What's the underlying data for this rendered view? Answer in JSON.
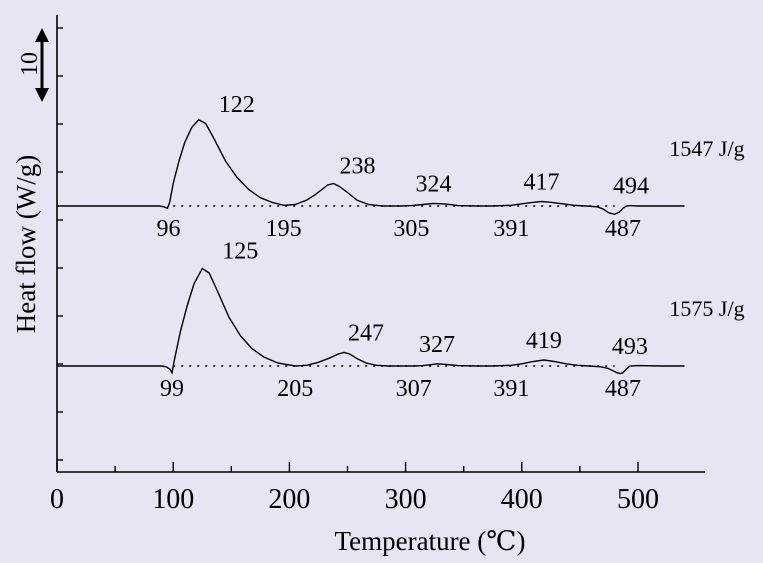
{
  "chart_data": {
    "type": "line",
    "xlabel": "Temperature (℃)",
    "ylabel": "Heat flow (W/g)",
    "scale_bar_label": "10",
    "xlim": [
      0,
      550
    ],
    "x_ticks": [
      "0",
      "100",
      "200",
      "300",
      "400",
      "500"
    ],
    "grid": false,
    "series": [
      {
        "energy_label": "1547 J/g",
        "x": [
          0,
          88,
          92,
          95,
          97,
          100,
          105,
          110,
          116,
          122,
          128,
          135,
          145,
          155,
          165,
          175,
          185,
          195,
          205,
          215,
          222,
          228,
          233,
          238,
          243,
          250,
          258,
          268,
          280,
          295,
          305,
          315,
          324,
          335,
          345,
          360,
          375,
          391,
          400,
          410,
          417,
          425,
          435,
          445,
          455,
          465,
          470,
          475,
          480,
          484,
          487,
          490,
          494,
          500,
          520,
          540
        ],
        "y": [
          0,
          0,
          -0.1,
          -0.3,
          0.5,
          3.0,
          6.0,
          8.5,
          10.5,
          11.5,
          11.0,
          9.0,
          6.0,
          3.8,
          2.2,
          1.1,
          0.5,
          0.1,
          0.2,
          0.8,
          1.5,
          2.2,
          2.8,
          3.0,
          2.6,
          1.8,
          0.8,
          0.2,
          0.0,
          0.0,
          0.05,
          0.2,
          0.35,
          0.25,
          0.05,
          0.0,
          0.0,
          0.1,
          0.3,
          0.5,
          0.6,
          0.5,
          0.3,
          0.1,
          0.0,
          -0.1,
          -0.4,
          -0.9,
          -1.1,
          -0.8,
          -0.3,
          0.0,
          0.05,
          0.0,
          0.0,
          0.0
        ],
        "labels": [
          {
            "text": "122",
            "x": 122
          },
          {
            "text": "96",
            "x": 96
          },
          {
            "text": "195",
            "x": 195
          },
          {
            "text": "238",
            "x": 238
          },
          {
            "text": "305",
            "x": 305
          },
          {
            "text": "324",
            "x": 324
          },
          {
            "text": "391",
            "x": 391
          },
          {
            "text": "417",
            "x": 417
          },
          {
            "text": "487",
            "x": 487
          },
          {
            "text": "494",
            "x": 494
          }
        ]
      },
      {
        "energy_label": "1575 J/g",
        "x": [
          0,
          90,
          94,
          97,
          99,
          101,
          106,
          112,
          118,
          125,
          131,
          138,
          148,
          158,
          168,
          178,
          190,
          205,
          215,
          225,
          235,
          242,
          247,
          252,
          258,
          266,
          275,
          285,
          295,
          307,
          315,
          320,
          327,
          335,
          345,
          360,
          375,
          391,
          400,
          410,
          419,
          428,
          438,
          448,
          458,
          468,
          474,
          478,
          482,
          485,
          487,
          490,
          493,
          500,
          520,
          540
        ],
        "y": [
          0,
          0,
          -0.1,
          -0.4,
          -0.9,
          0.8,
          4.5,
          8.0,
          11.0,
          13.0,
          12.4,
          10.0,
          6.5,
          4.0,
          2.3,
          1.2,
          0.4,
          0.0,
          0.1,
          0.5,
          1.1,
          1.6,
          1.8,
          1.6,
          1.0,
          0.4,
          0.1,
          0.0,
          0.0,
          0.0,
          0.05,
          0.15,
          0.3,
          0.2,
          0.05,
          0.0,
          0.0,
          0.1,
          0.3,
          0.6,
          0.8,
          0.6,
          0.3,
          0.1,
          0.0,
          -0.1,
          -0.3,
          -0.6,
          -0.9,
          -1.0,
          -0.9,
          -0.4,
          0.0,
          0.05,
          0.0,
          0.0
        ],
        "labels": [
          {
            "text": "125",
            "x": 125
          },
          {
            "text": "99",
            "x": 99
          },
          {
            "text": "205",
            "x": 205
          },
          {
            "text": "247",
            "x": 247
          },
          {
            "text": "307",
            "x": 307
          },
          {
            "text": "327",
            "x": 327
          },
          {
            "text": "391",
            "x": 391
          },
          {
            "text": "419",
            "x": 419
          },
          {
            "text": "487",
            "x": 487
          },
          {
            "text": "493",
            "x": 493
          }
        ]
      }
    ]
  }
}
